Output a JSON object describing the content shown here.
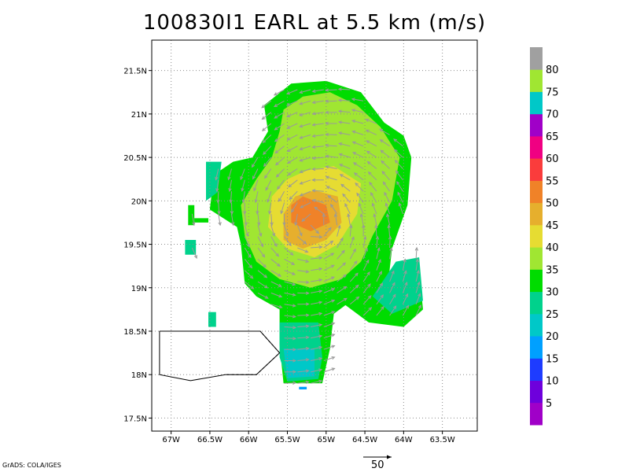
{
  "chart_data": {
    "type": "heatmap",
    "title": "100830I1 EARL at 5.5 km (m/s)",
    "x_ticks": [
      "67W",
      "66.5W",
      "66W",
      "65.5W",
      "65W",
      "64.5W",
      "64W",
      "63.5W"
    ],
    "y_ticks": [
      "17.5N",
      "18N",
      "18.5N",
      "19N",
      "19.5N",
      "20N",
      "20.5N",
      "21N",
      "21.5N"
    ],
    "xlim": [
      -67.25,
      -63.05
    ],
    "ylim": [
      17.35,
      21.85
    ],
    "grid": true,
    "colorbar": {
      "labels": [
        "5",
        "10",
        "15",
        "20",
        "25",
        "30",
        "35",
        "40",
        "45",
        "50",
        "55",
        "60",
        "65",
        "70",
        "75",
        "80"
      ],
      "colors": [
        "#a000c8",
        "#6e00dc",
        "#1e3cff",
        "#00a0ff",
        "#00c8c8",
        "#00d28c",
        "#00dc00",
        "#a0e632",
        "#e6dc32",
        "#e6af2d",
        "#f08228",
        "#fa3c3c",
        "#f00082",
        "#a000c8",
        "#00c8c8",
        "#a0e632",
        "#a0a0a0"
      ]
    },
    "reference_vector": "50",
    "regions": [
      {
        "name": "outer-35",
        "level": 35,
        "color": "#00dc00",
        "polygon": [
          [
            -65.45,
            21.35
          ],
          [
            -65.0,
            21.38
          ],
          [
            -64.55,
            21.25
          ],
          [
            -64.25,
            20.9
          ],
          [
            -64.0,
            20.75
          ],
          [
            -63.9,
            20.5
          ],
          [
            -63.95,
            19.95
          ],
          [
            -64.15,
            19.45
          ],
          [
            -64.2,
            19.05
          ],
          [
            -64.0,
            18.95
          ],
          [
            -63.8,
            19.2
          ],
          [
            -63.75,
            18.75
          ],
          [
            -64.0,
            18.55
          ],
          [
            -64.45,
            18.6
          ],
          [
            -64.75,
            18.8
          ],
          [
            -64.9,
            18.7
          ],
          [
            -64.95,
            18.3
          ],
          [
            -65.05,
            17.9
          ],
          [
            -65.55,
            17.9
          ],
          [
            -65.6,
            18.35
          ],
          [
            -65.6,
            18.75
          ],
          [
            -65.9,
            18.9
          ],
          [
            -66.05,
            19.05
          ],
          [
            -66.1,
            19.5
          ],
          [
            -66.15,
            19.7
          ],
          [
            -66.5,
            19.9
          ],
          [
            -66.45,
            20.3
          ],
          [
            -66.2,
            20.45
          ],
          [
            -65.95,
            20.5
          ],
          [
            -65.75,
            20.8
          ],
          [
            -65.8,
            21.1
          ]
        ]
      },
      {
        "name": "inner-40",
        "level": 40,
        "color": "#a0e632",
        "polygon": [
          [
            -65.3,
            21.2
          ],
          [
            -64.95,
            21.25
          ],
          [
            -64.6,
            21.1
          ],
          [
            -64.3,
            20.85
          ],
          [
            -64.05,
            20.5
          ],
          [
            -64.15,
            20.0
          ],
          [
            -64.4,
            19.6
          ],
          [
            -64.55,
            19.3
          ],
          [
            -64.8,
            19.1
          ],
          [
            -65.2,
            19.0
          ],
          [
            -65.6,
            19.1
          ],
          [
            -65.9,
            19.3
          ],
          [
            -66.05,
            19.6
          ],
          [
            -66.1,
            19.95
          ],
          [
            -65.9,
            20.25
          ],
          [
            -65.7,
            20.5
          ],
          [
            -65.6,
            20.8
          ],
          [
            -65.55,
            21.05
          ]
        ]
      },
      {
        "name": "ring-45",
        "level": 45,
        "color": "#e6dc32",
        "polygon": [
          [
            -65.25,
            20.35
          ],
          [
            -64.9,
            20.4
          ],
          [
            -64.55,
            20.2
          ],
          [
            -64.6,
            19.85
          ],
          [
            -64.85,
            19.5
          ],
          [
            -65.15,
            19.35
          ],
          [
            -65.5,
            19.45
          ],
          [
            -65.75,
            19.7
          ],
          [
            -65.7,
            20.05
          ],
          [
            -65.5,
            20.25
          ]
        ]
      },
      {
        "name": "ring-50",
        "level": 50,
        "color": "#e6af2d",
        "polygon": [
          [
            -65.15,
            20.12
          ],
          [
            -64.85,
            20.05
          ],
          [
            -64.8,
            19.75
          ],
          [
            -65.0,
            19.55
          ],
          [
            -65.3,
            19.45
          ],
          [
            -65.55,
            19.55
          ],
          [
            -65.55,
            19.85
          ],
          [
            -65.4,
            20.05
          ]
        ]
      },
      {
        "name": "core-55",
        "level": 55,
        "color": "#f08228",
        "polygon": [
          [
            -65.3,
            20.05
          ],
          [
            -65.0,
            19.95
          ],
          [
            -64.95,
            19.75
          ],
          [
            -65.2,
            19.65
          ],
          [
            -65.45,
            19.75
          ],
          [
            -65.45,
            19.95
          ]
        ]
      },
      {
        "name": "south-30",
        "level": 30,
        "color": "#00d28c",
        "polygon": [
          [
            -65.6,
            18.6
          ],
          [
            -65.1,
            18.6
          ],
          [
            -65.05,
            18.2
          ],
          [
            -65.1,
            17.95
          ],
          [
            -65.5,
            17.92
          ],
          [
            -65.6,
            18.2
          ]
        ]
      },
      {
        "name": "south-25",
        "level": 25,
        "color": "#00c8c8",
        "polygon": [
          [
            -65.55,
            18.3
          ],
          [
            -65.15,
            18.3
          ],
          [
            -65.15,
            17.98
          ],
          [
            -65.5,
            17.96
          ]
        ]
      },
      {
        "name": "west-patch",
        "level": 30,
        "color": "#00d28c",
        "polygon": [
          [
            -66.55,
            20.45
          ],
          [
            -66.35,
            20.45
          ],
          [
            -66.4,
            20.1
          ],
          [
            -66.55,
            20.0
          ]
        ]
      },
      {
        "name": "east-patch",
        "level": 30,
        "color": "#00d28c",
        "polygon": [
          [
            -64.1,
            19.3
          ],
          [
            -63.8,
            19.35
          ],
          [
            -63.75,
            18.85
          ],
          [
            -64.15,
            18.7
          ],
          [
            -64.4,
            18.9
          ]
        ]
      }
    ],
    "scattered_cells": [
      {
        "name": "cell-a",
        "level": 35,
        "color": "#00dc00",
        "polygon": [
          [
            -66.78,
            19.95
          ],
          [
            -66.7,
            19.95
          ],
          [
            -66.7,
            19.72
          ],
          [
            -66.78,
            19.72
          ]
        ]
      },
      {
        "name": "cell-b",
        "level": 35,
        "color": "#00dc00",
        "polygon": [
          [
            -66.7,
            19.8
          ],
          [
            -66.52,
            19.8
          ],
          [
            -66.52,
            19.75
          ],
          [
            -66.7,
            19.75
          ]
        ]
      },
      {
        "name": "cell-c",
        "level": 30,
        "color": "#00d28c",
        "polygon": [
          [
            -66.82,
            19.55
          ],
          [
            -66.68,
            19.55
          ],
          [
            -66.68,
            19.38
          ],
          [
            -66.82,
            19.38
          ]
        ]
      },
      {
        "name": "cell-d",
        "level": 30,
        "color": "#00d28c",
        "polygon": [
          [
            -66.52,
            18.72
          ],
          [
            -66.42,
            18.72
          ],
          [
            -66.42,
            18.55
          ],
          [
            -66.52,
            18.55
          ]
        ]
      },
      {
        "name": "cell-e",
        "level": 20,
        "color": "#00a0ff",
        "polygon": [
          [
            -65.35,
            17.86
          ],
          [
            -65.25,
            17.86
          ],
          [
            -65.25,
            17.83
          ],
          [
            -65.35,
            17.83
          ]
        ]
      }
    ],
    "coastline": [
      [
        -67.15,
        18.5
      ],
      [
        -65.85,
        18.5
      ],
      [
        -65.6,
        18.25
      ],
      [
        -65.9,
        18.0
      ],
      [
        -66.3,
        18.0
      ],
      [
        -66.75,
        17.93
      ],
      [
        -67.15,
        18.0
      ],
      [
        -67.15,
        18.5
      ]
    ],
    "vortex_center": [
      -65.15,
      19.75
    ]
  },
  "credit": "GrADS: COLA/IGES"
}
